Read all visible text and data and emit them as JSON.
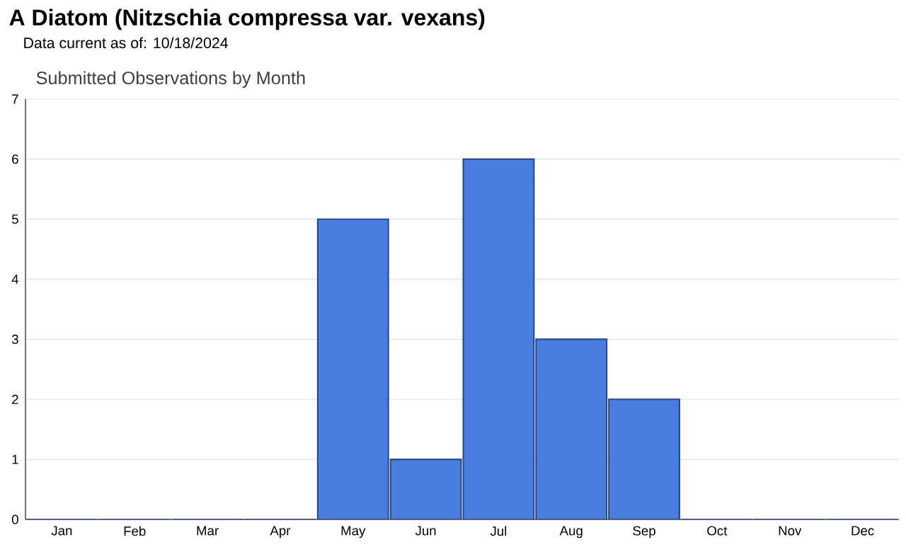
{
  "chart_data": {
    "type": "bar",
    "title": "A Diatom   (Nitzschia compressa var. vexans)",
    "subtitle": "Data current as of: 10/18/2024",
    "annotations": [
      "Submitted Observations by Month"
    ],
    "categories": [
      "Jan",
      "Feb",
      "Mar",
      "Apr",
      "May",
      "Jun",
      "Jul",
      "Aug",
      "Sep",
      "Oct",
      "Nov",
      "Dec"
    ],
    "values": [
      0,
      0,
      0,
      0,
      5,
      1,
      6,
      3,
      2,
      0,
      0,
      0
    ],
    "color": "#4a7de0",
    "ylim": [
      0,
      7
    ],
    "yticks": [
      0,
      1,
      2,
      3,
      4,
      5,
      6,
      7
    ],
    "grid": "y"
  }
}
